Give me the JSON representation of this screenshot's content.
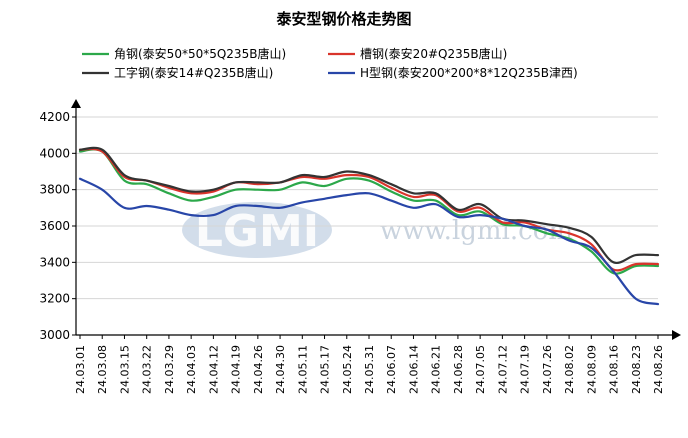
{
  "chart_data": {
    "type": "line",
    "title": "泰安型钢价格走势图",
    "ylim": [
      3000,
      4200
    ],
    "yticks": [
      3000,
      3200,
      3400,
      3600,
      3800,
      4000,
      4200
    ],
    "x": [
      "24.03.01",
      "24.03.08",
      "24.03.15",
      "24.03.22",
      "24.03.29",
      "24.04.03",
      "24.04.12",
      "24.04.19",
      "24.04.26",
      "24.04.30",
      "24.05.11",
      "24.05.17",
      "24.05.24",
      "24.05.31",
      "24.06.07",
      "24.06.14",
      "24.06.21",
      "24.06.28",
      "24.07.05",
      "24.07.12",
      "24.07.19",
      "24.07.26",
      "24.08.02",
      "24.08.09",
      "24.08.16",
      "24.08.23",
      "24.08.26"
    ],
    "grid": true,
    "watermark": {
      "logo": "LGMI",
      "url": "www.lgmi.com"
    },
    "series": [
      {
        "name": "角钢(泰安50*50*5Q235B唐山)",
        "color": "#2ca84a",
        "values": [
          4010,
          4010,
          3850,
          3830,
          3780,
          3740,
          3760,
          3800,
          3800,
          3800,
          3840,
          3820,
          3860,
          3850,
          3790,
          3740,
          3740,
          3660,
          3680,
          3610,
          3600,
          3560,
          3530,
          3460,
          3340,
          3380,
          3380
        ]
      },
      {
        "name": "槽钢(泰安20#Q235B唐山)",
        "color": "#d9342b",
        "values": [
          4020,
          4010,
          3870,
          3850,
          3810,
          3780,
          3790,
          3840,
          3830,
          3840,
          3870,
          3860,
          3880,
          3870,
          3810,
          3760,
          3770,
          3680,
          3700,
          3620,
          3620,
          3580,
          3560,
          3500,
          3360,
          3390,
          3390
        ]
      },
      {
        "name": "工字钢(泰安14#Q235B唐山)",
        "color": "#333333",
        "values": [
          4020,
          4020,
          3880,
          3850,
          3820,
          3790,
          3800,
          3840,
          3840,
          3840,
          3880,
          3870,
          3900,
          3880,
          3830,
          3780,
          3780,
          3690,
          3720,
          3640,
          3630,
          3610,
          3590,
          3540,
          3400,
          3440,
          3440
        ]
      },
      {
        "name": "H型钢(泰安200*200*8*12Q235B津西)",
        "color": "#2846a8",
        "values": [
          3860,
          3800,
          3700,
          3710,
          3690,
          3660,
          3660,
          3710,
          3710,
          3700,
          3730,
          3750,
          3770,
          3780,
          3740,
          3700,
          3720,
          3650,
          3660,
          3640,
          3600,
          3580,
          3520,
          3480,
          3350,
          3200,
          3170
        ]
      }
    ]
  }
}
